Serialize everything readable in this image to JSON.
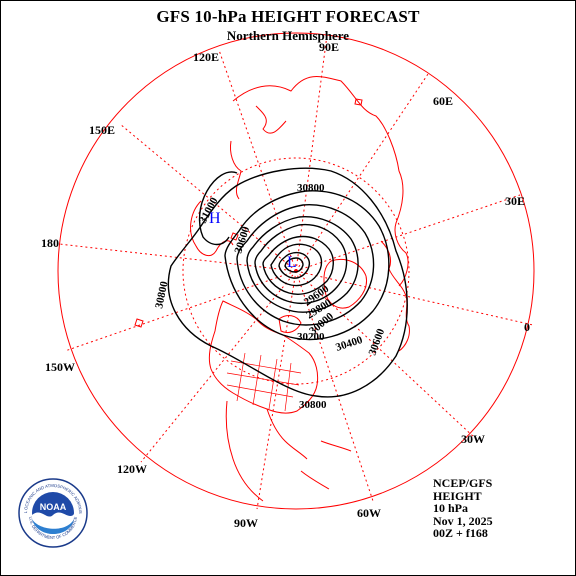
{
  "header": {
    "title": "GFS 10-hPa HEIGHT FORECAST",
    "subtitle": "Northern Hemisphere"
  },
  "map": {
    "projection": "north polar stereographic",
    "longitude_labels": {
      "90E": "90E",
      "60E": "60E",
      "30E": "30E",
      "0": "0",
      "30W": "30W",
      "60W": "60W",
      "90W": "90W",
      "120W": "120W",
      "150W": "150W",
      "180": "180",
      "150E": "150E",
      "120E": "120E"
    },
    "contour_labels": {
      "c30800_top": "30800",
      "c31000": "31000",
      "c30800_left": "30800",
      "c30800_bottom": "30800",
      "c30600": "30600",
      "c30400": "30400",
      "c30200": "30200",
      "c30000": "30000",
      "c29800": "29800",
      "c29600": "29600",
      "c30600_inner": "30600"
    },
    "high_label": "H",
    "low_label": "L",
    "colors": {
      "geography": "#ff0000",
      "contours": "#000000",
      "high": "#0000ff",
      "low": "#0000ff"
    }
  },
  "info": {
    "center": "NCEP/GFS",
    "field": "HEIGHT",
    "level": "10 hPa",
    "date": "Nov 1, 2025",
    "run": "00Z + f168"
  },
  "logo": {
    "name": "noaa-logo",
    "text": "NOAA",
    "ring_top": "NATIONAL OCEANIC AND ATMOSPHERIC ADMINISTRATION",
    "ring_bottom": "U.S. DEPARTMENT OF COMMERCE"
  }
}
